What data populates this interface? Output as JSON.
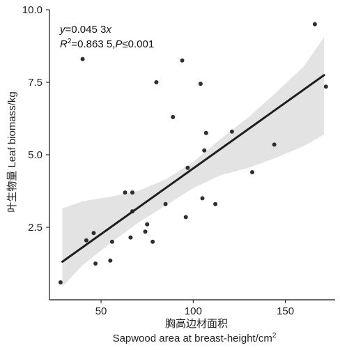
{
  "chart_data": {
    "type": "scatter",
    "x_label_cn": "胸高边材面积",
    "x_label_en": "Sapwood area at breast-height/cm",
    "x_label_sup": "2",
    "y_label": "叶生物量 Leaf biomass/kg",
    "xlim": [
      22,
      177
    ],
    "ylim": [
      0,
      10
    ],
    "x_ticks": [
      50,
      100,
      150
    ],
    "y_ticks": [
      2.5,
      5.0,
      7.5,
      10.0
    ],
    "y_tick_labels": [
      "2.5",
      "5.0",
      "7.5",
      "10.0"
    ],
    "annotation": {
      "eq_y": "y",
      "eq_rest": "=0.045 3",
      "eq_x": "x",
      "r2_R": "R",
      "r2_sup": "2",
      "r2_rest": "=0.863 5,",
      "p_P": "P",
      "p_rest": "≤0.001"
    },
    "fit": {
      "slope": 0.0453,
      "intercept": 0,
      "x_range": [
        29,
        171
      ]
    },
    "confidence_band": [
      {
        "x": 29,
        "lower": 0.45,
        "upper": 3.15
      },
      {
        "x": 40,
        "lower": 1.2,
        "upper": 3.4
      },
      {
        "x": 55,
        "lower": 1.95,
        "upper": 3.55
      },
      {
        "x": 70,
        "lower": 2.65,
        "upper": 3.75
      },
      {
        "x": 85,
        "lower": 3.25,
        "upper": 4.15
      },
      {
        "x": 100,
        "lower": 3.85,
        "upper": 4.75
      },
      {
        "x": 115,
        "lower": 4.3,
        "upper": 5.55
      },
      {
        "x": 130,
        "lower": 4.55,
        "upper": 6.3
      },
      {
        "x": 145,
        "lower": 4.9,
        "upper": 7.15
      },
      {
        "x": 160,
        "lower": 5.3,
        "upper": 8.05
      },
      {
        "x": 171,
        "lower": 5.7,
        "upper": 9.05
      }
    ],
    "points": [
      {
        "x": 28,
        "y": 0.6
      },
      {
        "x": 40,
        "y": 8.3
      },
      {
        "x": 42,
        "y": 2.05
      },
      {
        "x": 46,
        "y": 2.3
      },
      {
        "x": 47,
        "y": 1.25
      },
      {
        "x": 55,
        "y": 1.35
      },
      {
        "x": 56,
        "y": 2.0
      },
      {
        "x": 63,
        "y": 3.7
      },
      {
        "x": 66,
        "y": 2.15
      },
      {
        "x": 67,
        "y": 3.7
      },
      {
        "x": 67,
        "y": 3.05
      },
      {
        "x": 74,
        "y": 2.35
      },
      {
        "x": 75,
        "y": 2.6
      },
      {
        "x": 78,
        "y": 2.0
      },
      {
        "x": 80,
        "y": 7.5
      },
      {
        "x": 85,
        "y": 3.3
      },
      {
        "x": 89,
        "y": 6.3
      },
      {
        "x": 94,
        "y": 8.25
      },
      {
        "x": 96,
        "y": 2.85
      },
      {
        "x": 97,
        "y": 4.55
      },
      {
        "x": 104,
        "y": 7.45
      },
      {
        "x": 105,
        "y": 3.5
      },
      {
        "x": 106,
        "y": 5.15
      },
      {
        "x": 107,
        "y": 5.75
      },
      {
        "x": 112,
        "y": 3.3
      },
      {
        "x": 121,
        "y": 5.8
      },
      {
        "x": 132,
        "y": 4.4
      },
      {
        "x": 144,
        "y": 5.35
      },
      {
        "x": 166,
        "y": 9.5
      },
      {
        "x": 172,
        "y": 7.35
      }
    ],
    "colors": {
      "point": "#2f2f2f",
      "fit_line": "#1f1f1f",
      "band": "#e3e3e3",
      "axis": "#111111"
    }
  }
}
